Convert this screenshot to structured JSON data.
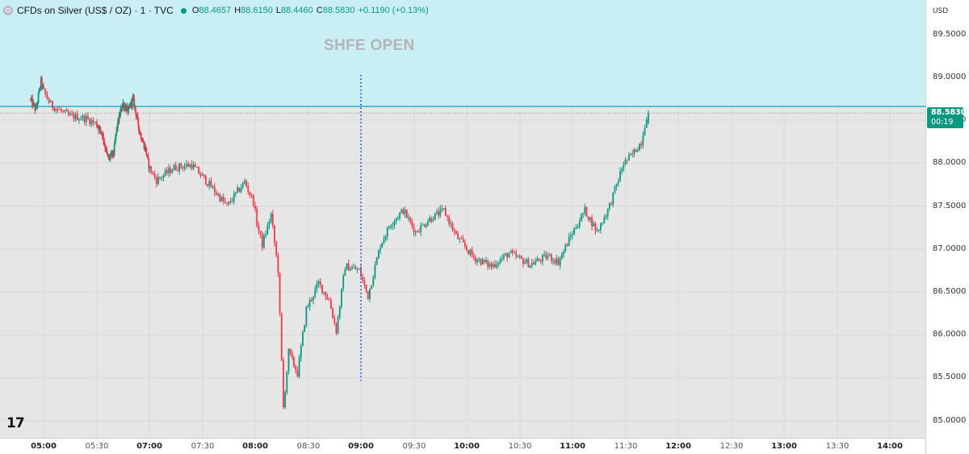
{
  "legend": {
    "symbol": "CFDs on Silver (US$ / OZ) · 1 · TVC",
    "open_label": "O",
    "open": "88.4657",
    "high_label": "H",
    "high": "88.6150",
    "low_label": "L",
    "low": "88.4460",
    "close_label": "C",
    "close": "88.5830",
    "change": "+0.1190 (+0.13%)"
  },
  "annotation": "SHFE OPEN",
  "currency": "USD",
  "price_tag": {
    "price": "88.5830",
    "countdown": "00:19"
  },
  "logo_text": "17",
  "colors": {
    "up": "#089981",
    "down": "#f23645",
    "zone_fill": "#c9eef3",
    "zone_line": "#00a3c2",
    "event_line": "#2962ff",
    "plot_bg": "#e6e6e6"
  },
  "chart_data": {
    "type": "candlestick",
    "instrument": "CFDs on Silver (US$ / OZ)",
    "interval": "1",
    "ylim": [
      84.8,
      89.9
    ],
    "y_ticks": [
      "89.5000",
      "89.0000",
      "88.5000",
      "88.0000",
      "87.5000",
      "87.0000",
      "86.5000",
      "86.0000",
      "85.5000",
      "85.0000"
    ],
    "x_ticks": [
      "05:00",
      "05:30",
      "07:00",
      "07:30",
      "08:00",
      "08:30",
      "09:00",
      "09:30",
      "10:00",
      "10:30",
      "11:00",
      "11:30",
      "12:00",
      "12:30",
      "13:00",
      "13:30",
      "14:00"
    ],
    "x_ticks_bold": [
      "05:00",
      "07:00",
      "08:00",
      "09:00",
      "10:00",
      "11:00",
      "12:00",
      "13:00",
      "14:00"
    ],
    "price_anchor_path": [
      [
        "04:45",
        88.75
      ],
      [
        "04:52",
        88.62
      ],
      [
        "04:58",
        88.95
      ],
      [
        "05:05",
        88.68
      ],
      [
        "05:15",
        88.55
      ],
      [
        "05:25",
        88.52
      ],
      [
        "05:40",
        88.35
      ],
      [
        "05:50",
        88.05
      ],
      [
        "06:00",
        88.12
      ],
      [
        "06:05",
        88.4
      ],
      [
        "06:15",
        88.7
      ],
      [
        "06:25",
        88.6
      ],
      [
        "06:33",
        88.75
      ],
      [
        "06:45",
        88.35
      ],
      [
        "06:55",
        88.15
      ],
      [
        "07:05",
        87.8
      ],
      [
        "07:15",
        87.95
      ],
      [
        "07:25",
        87.98
      ],
      [
        "07:35",
        87.75
      ],
      [
        "07:45",
        87.5
      ],
      [
        "07:55",
        87.78
      ],
      [
        "08:00",
        87.55
      ],
      [
        "08:02",
        87.3
      ],
      [
        "08:05",
        87.05
      ],
      [
        "08:10",
        87.4
      ],
      [
        "08:14",
        86.75
      ],
      [
        "08:17",
        85.15
      ],
      [
        "08:20",
        85.8
      ],
      [
        "08:25",
        85.55
      ],
      [
        "08:30",
        86.3
      ],
      [
        "08:37",
        86.6
      ],
      [
        "08:43",
        86.4
      ],
      [
        "08:47",
        86.05
      ],
      [
        "08:52",
        86.8
      ],
      [
        "09:00",
        86.75
      ],
      [
        "09:05",
        86.45
      ],
      [
        "09:12",
        87.05
      ],
      [
        "09:18",
        87.3
      ],
      [
        "09:25",
        87.45
      ],
      [
        "09:32",
        87.2
      ],
      [
        "09:40",
        87.35
      ],
      [
        "09:48",
        87.45
      ],
      [
        "09:55",
        87.15
      ],
      [
        "10:05",
        86.9
      ],
      [
        "10:15",
        86.8
      ],
      [
        "10:25",
        86.95
      ],
      [
        "10:37",
        86.82
      ],
      [
        "10:47",
        86.92
      ],
      [
        "10:53",
        86.85
      ],
      [
        "11:00",
        87.15
      ],
      [
        "11:08",
        87.45
      ],
      [
        "11:15",
        87.2
      ],
      [
        "11:22",
        87.5
      ],
      [
        "11:30",
        88.0
      ],
      [
        "11:35",
        88.1
      ],
      [
        "11:40",
        88.25
      ],
      [
        "11:43",
        88.55
      ]
    ],
    "last_candle": {
      "open": 88.4657,
      "high": 88.615,
      "low": 88.446,
      "close": 88.583
    },
    "last_price": 88.583,
    "resistance_line": 88.66,
    "shaded_zone": {
      "from": 88.66,
      "to": 89.9,
      "label": ""
    },
    "event_marker": {
      "time": "09:00",
      "label": "SHFE OPEN"
    },
    "grid": true
  }
}
